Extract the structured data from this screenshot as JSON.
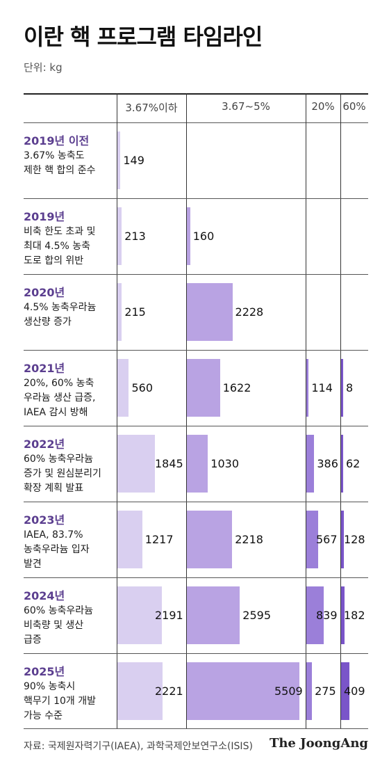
{
  "title": "이란 핵 프로그램 타임라인",
  "unit": "단위: kg",
  "source": "자료: 국제원자력기구(IAEA), 과학국제안보연구소(ISIS)",
  "brand": "The JoongAng",
  "colors": {
    "c1": "#d9cff0",
    "c2": "#b9a3e3",
    "c3": "#9b7fd9",
    "c4": "#7a55c9",
    "year": "#5b3e8f"
  },
  "chart_data": {
    "type": "bar",
    "title": "이란 핵 프로그램 타임라인",
    "unit": "kg",
    "columns": [
      "3.67%이하",
      "3.67~5%",
      "20%",
      "60%"
    ],
    "rows": [
      {
        "year": "2019년 이전",
        "desc": "3.67% 농축도\n제한 핵 합의 준수",
        "values": [
          149,
          null,
          null,
          null
        ]
      },
      {
        "year": "2019년",
        "desc": "비축 한도 초과 및\n최대 4.5% 농축\n도로 합의 위반",
        "values": [
          213,
          160,
          null,
          null
        ]
      },
      {
        "year": "2020년",
        "desc": "4.5% 농축우라늄\n생산량 증가",
        "values": [
          215,
          2228,
          null,
          null
        ]
      },
      {
        "year": "2021년",
        "desc": "20%, 60% 농축\n우라늄 생산 급증,\nIAEA 감시 방해",
        "values": [
          560,
          1622,
          114,
          8
        ]
      },
      {
        "year": "2022년",
        "desc": "60% 농축우라늄\n증가 및 원심분리기\n확장 계획 발표",
        "values": [
          1845,
          1030,
          386,
          62
        ]
      },
      {
        "year": "2023년",
        "desc": "IAEA, 83.7%\n농축우라늄 입자\n발견",
        "values": [
          1217,
          2218,
          567,
          128
        ]
      },
      {
        "year": "2024년",
        "desc": "60% 농축우라늄\n비축량 및 생산\n급증",
        "values": [
          2191,
          2595,
          839,
          182
        ]
      },
      {
        "year": "2025년",
        "desc": "90% 농축시\n핵무기 10개 개발\n가능 수준",
        "values": [
          2221,
          5509,
          275,
          409
        ]
      }
    ]
  }
}
